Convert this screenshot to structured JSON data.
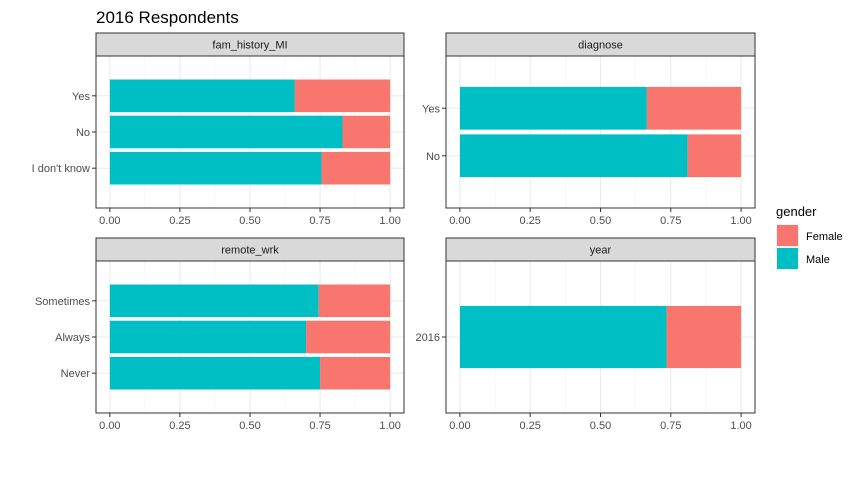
{
  "chart_data": {
    "type": "bar",
    "orientation": "horizontal",
    "stacked": true,
    "title": "2016 Respondents",
    "xlim": [
      0,
      1
    ],
    "x_ticks": [
      "0.00",
      "0.25",
      "0.50",
      "0.75",
      "1.00"
    ],
    "grid": true,
    "legend": {
      "title": "gender",
      "position": "right",
      "entries": [
        {
          "label": "Female",
          "color": "#F8766D"
        },
        {
          "label": "Male",
          "color": "#00BFC4"
        }
      ]
    },
    "panels": [
      {
        "strip": "fam_history_MI",
        "categories": [
          "Yes",
          "No",
          "I don't know"
        ],
        "series": [
          {
            "name": "Male",
            "values": [
              0.66,
              0.83,
              0.755
            ]
          },
          {
            "name": "Female",
            "values": [
              0.34,
              0.17,
              0.245
            ]
          }
        ]
      },
      {
        "strip": "diagnose",
        "categories": [
          "Yes",
          "No"
        ],
        "series": [
          {
            "name": "Male",
            "values": [
              0.665,
              0.81
            ]
          },
          {
            "name": "Female",
            "values": [
              0.335,
              0.19
            ]
          }
        ]
      },
      {
        "strip": "remote_wrk",
        "categories": [
          "Sometimes",
          "Always",
          "Never"
        ],
        "series": [
          {
            "name": "Male",
            "values": [
              0.745,
              0.7,
              0.75
            ]
          },
          {
            "name": "Female",
            "values": [
              0.255,
              0.3,
              0.25
            ]
          }
        ]
      },
      {
        "strip": "year",
        "categories": [
          "2016"
        ],
        "series": [
          {
            "name": "Male",
            "values": [
              0.735
            ]
          },
          {
            "name": "Female",
            "values": [
              0.265
            ]
          }
        ]
      }
    ]
  }
}
